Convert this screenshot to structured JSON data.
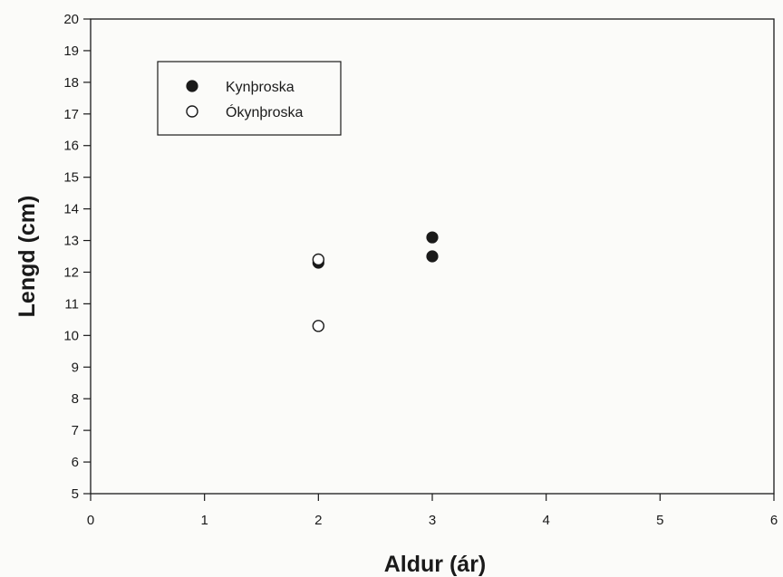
{
  "chart_data": {
    "type": "scatter",
    "title": "",
    "xlabel": "Aldur (ár)",
    "ylabel": "Lengd (cm)",
    "xlim": [
      0,
      6
    ],
    "ylim": [
      5,
      20
    ],
    "xticks": [
      "0",
      "1",
      "2",
      "3",
      "4",
      "5",
      "6"
    ],
    "yticks": [
      "5",
      "6",
      "7",
      "8",
      "9",
      "10",
      "11",
      "12",
      "13",
      "14",
      "15",
      "16",
      "17",
      "18",
      "19",
      "20"
    ],
    "grid": false,
    "legend_position": "top-left",
    "series": [
      {
        "name": "Kynþroska",
        "marker": "filled-circle",
        "color": "#1a1a1a",
        "points": [
          {
            "x": 2,
            "y": 12.3
          },
          {
            "x": 3,
            "y": 13.1
          },
          {
            "x": 3,
            "y": 12.5
          }
        ]
      },
      {
        "name": "Ókynþroska",
        "marker": "open-circle",
        "color": "#1a1a1a",
        "points": [
          {
            "x": 2,
            "y": 12.4
          },
          {
            "x": 2,
            "y": 10.3
          }
        ]
      }
    ]
  }
}
